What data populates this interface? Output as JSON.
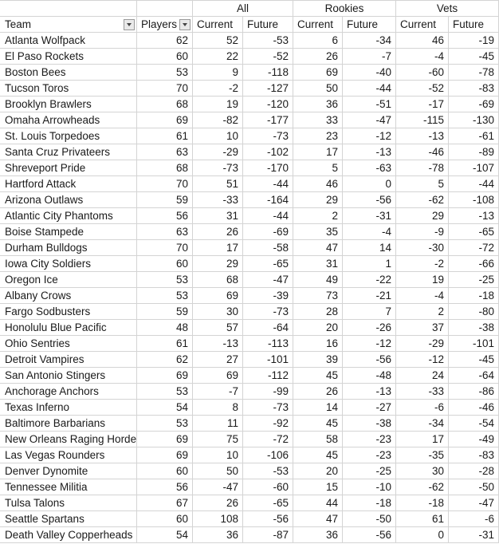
{
  "colors": {
    "grid": "#d4d4d4",
    "text": "#1a1a1a",
    "filter_button_bg": "#e9e9e9",
    "filter_button_border": "#9a9a9a"
  },
  "header": {
    "groups": [
      {
        "label": "All"
      },
      {
        "label": "Rookies"
      },
      {
        "label": "Vets"
      }
    ],
    "team_label": "Team",
    "players_label": "Players",
    "sub_labels": [
      "Current",
      "Future",
      "Current",
      "Future",
      "Current",
      "Future"
    ],
    "filter_icon_name": "chevron-down-icon"
  },
  "rows": [
    {
      "team": "Atlanta Wolfpack",
      "players": 62,
      "all_current": 52,
      "all_future": -53,
      "rookies_current": 6,
      "rookies_future": -34,
      "vets_current": 46,
      "vets_future": -19
    },
    {
      "team": "El Paso Rockets",
      "players": 60,
      "all_current": 22,
      "all_future": -52,
      "rookies_current": 26,
      "rookies_future": -7,
      "vets_current": -4,
      "vets_future": -45
    },
    {
      "team": "Boston Bees",
      "players": 53,
      "all_current": 9,
      "all_future": -118,
      "rookies_current": 69,
      "rookies_future": -40,
      "vets_current": -60,
      "vets_future": -78
    },
    {
      "team": "Tucson Toros",
      "players": 70,
      "all_current": -2,
      "all_future": -127,
      "rookies_current": 50,
      "rookies_future": -44,
      "vets_current": -52,
      "vets_future": -83
    },
    {
      "team": "Brooklyn Brawlers",
      "players": 68,
      "all_current": 19,
      "all_future": -120,
      "rookies_current": 36,
      "rookies_future": -51,
      "vets_current": -17,
      "vets_future": -69
    },
    {
      "team": "Omaha Arrowheads",
      "players": 69,
      "all_current": -82,
      "all_future": -177,
      "rookies_current": 33,
      "rookies_future": -47,
      "vets_current": -115,
      "vets_future": -130
    },
    {
      "team": "St. Louis Torpedoes",
      "players": 61,
      "all_current": 10,
      "all_future": -73,
      "rookies_current": 23,
      "rookies_future": -12,
      "vets_current": -13,
      "vets_future": -61
    },
    {
      "team": "Santa Cruz Privateers",
      "players": 63,
      "all_current": -29,
      "all_future": -102,
      "rookies_current": 17,
      "rookies_future": -13,
      "vets_current": -46,
      "vets_future": -89
    },
    {
      "team": "Shreveport Pride",
      "players": 68,
      "all_current": -73,
      "all_future": -170,
      "rookies_current": 5,
      "rookies_future": -63,
      "vets_current": -78,
      "vets_future": -107
    },
    {
      "team": "Hartford Attack",
      "players": 70,
      "all_current": 51,
      "all_future": -44,
      "rookies_current": 46,
      "rookies_future": 0,
      "vets_current": 5,
      "vets_future": -44
    },
    {
      "team": "Arizona Outlaws",
      "players": 59,
      "all_current": -33,
      "all_future": -164,
      "rookies_current": 29,
      "rookies_future": -56,
      "vets_current": -62,
      "vets_future": -108
    },
    {
      "team": "Atlantic City Phantoms",
      "players": 56,
      "all_current": 31,
      "all_future": -44,
      "rookies_current": 2,
      "rookies_future": -31,
      "vets_current": 29,
      "vets_future": -13
    },
    {
      "team": "Boise Stampede",
      "players": 63,
      "all_current": 26,
      "all_future": -69,
      "rookies_current": 35,
      "rookies_future": -4,
      "vets_current": -9,
      "vets_future": -65
    },
    {
      "team": "Durham Bulldogs",
      "players": 70,
      "all_current": 17,
      "all_future": -58,
      "rookies_current": 47,
      "rookies_future": 14,
      "vets_current": -30,
      "vets_future": -72
    },
    {
      "team": "Iowa City Soldiers",
      "players": 60,
      "all_current": 29,
      "all_future": -65,
      "rookies_current": 31,
      "rookies_future": 1,
      "vets_current": -2,
      "vets_future": -66
    },
    {
      "team": "Oregon Ice",
      "players": 53,
      "all_current": 68,
      "all_future": -47,
      "rookies_current": 49,
      "rookies_future": -22,
      "vets_current": 19,
      "vets_future": -25
    },
    {
      "team": "Albany Crows",
      "players": 53,
      "all_current": 69,
      "all_future": -39,
      "rookies_current": 73,
      "rookies_future": -21,
      "vets_current": -4,
      "vets_future": -18
    },
    {
      "team": "Fargo Sodbusters",
      "players": 59,
      "all_current": 30,
      "all_future": -73,
      "rookies_current": 28,
      "rookies_future": 7,
      "vets_current": 2,
      "vets_future": -80
    },
    {
      "team": "Honolulu Blue Pacific",
      "players": 48,
      "all_current": 57,
      "all_future": -64,
      "rookies_current": 20,
      "rookies_future": -26,
      "vets_current": 37,
      "vets_future": -38
    },
    {
      "team": "Ohio Sentries",
      "players": 61,
      "all_current": -13,
      "all_future": -113,
      "rookies_current": 16,
      "rookies_future": -12,
      "vets_current": -29,
      "vets_future": -101
    },
    {
      "team": "Detroit Vampires",
      "players": 62,
      "all_current": 27,
      "all_future": -101,
      "rookies_current": 39,
      "rookies_future": -56,
      "vets_current": -12,
      "vets_future": -45
    },
    {
      "team": "San Antonio Stingers",
      "players": 69,
      "all_current": 69,
      "all_future": -112,
      "rookies_current": 45,
      "rookies_future": -48,
      "vets_current": 24,
      "vets_future": -64
    },
    {
      "team": "Anchorage Anchors",
      "players": 53,
      "all_current": -7,
      "all_future": -99,
      "rookies_current": 26,
      "rookies_future": -13,
      "vets_current": -33,
      "vets_future": -86
    },
    {
      "team": "Texas Inferno",
      "players": 54,
      "all_current": 8,
      "all_future": -73,
      "rookies_current": 14,
      "rookies_future": -27,
      "vets_current": -6,
      "vets_future": -46
    },
    {
      "team": "Baltimore Barbarians",
      "players": 53,
      "all_current": 11,
      "all_future": -92,
      "rookies_current": 45,
      "rookies_future": -38,
      "vets_current": -34,
      "vets_future": -54
    },
    {
      "team": "New Orleans Raging Horde",
      "players": 69,
      "all_current": 75,
      "all_future": -72,
      "rookies_current": 58,
      "rookies_future": -23,
      "vets_current": 17,
      "vets_future": -49
    },
    {
      "team": "Las Vegas Rounders",
      "players": 69,
      "all_current": 10,
      "all_future": -106,
      "rookies_current": 45,
      "rookies_future": -23,
      "vets_current": -35,
      "vets_future": -83
    },
    {
      "team": "Denver Dynomite",
      "players": 60,
      "all_current": 50,
      "all_future": -53,
      "rookies_current": 20,
      "rookies_future": -25,
      "vets_current": 30,
      "vets_future": -28
    },
    {
      "team": "Tennessee Militia",
      "players": 56,
      "all_current": -47,
      "all_future": -60,
      "rookies_current": 15,
      "rookies_future": -10,
      "vets_current": -62,
      "vets_future": -50
    },
    {
      "team": "Tulsa Talons",
      "players": 67,
      "all_current": 26,
      "all_future": -65,
      "rookies_current": 44,
      "rookies_future": -18,
      "vets_current": -18,
      "vets_future": -47
    },
    {
      "team": "Seattle Spartans",
      "players": 60,
      "all_current": 108,
      "all_future": -56,
      "rookies_current": 47,
      "rookies_future": -50,
      "vets_current": 61,
      "vets_future": -6
    },
    {
      "team": "Death Valley Copperheads",
      "players": 54,
      "all_current": 36,
      "all_future": -87,
      "rookies_current": 36,
      "rookies_future": -56,
      "vets_current": 0,
      "vets_future": -31
    }
  ]
}
